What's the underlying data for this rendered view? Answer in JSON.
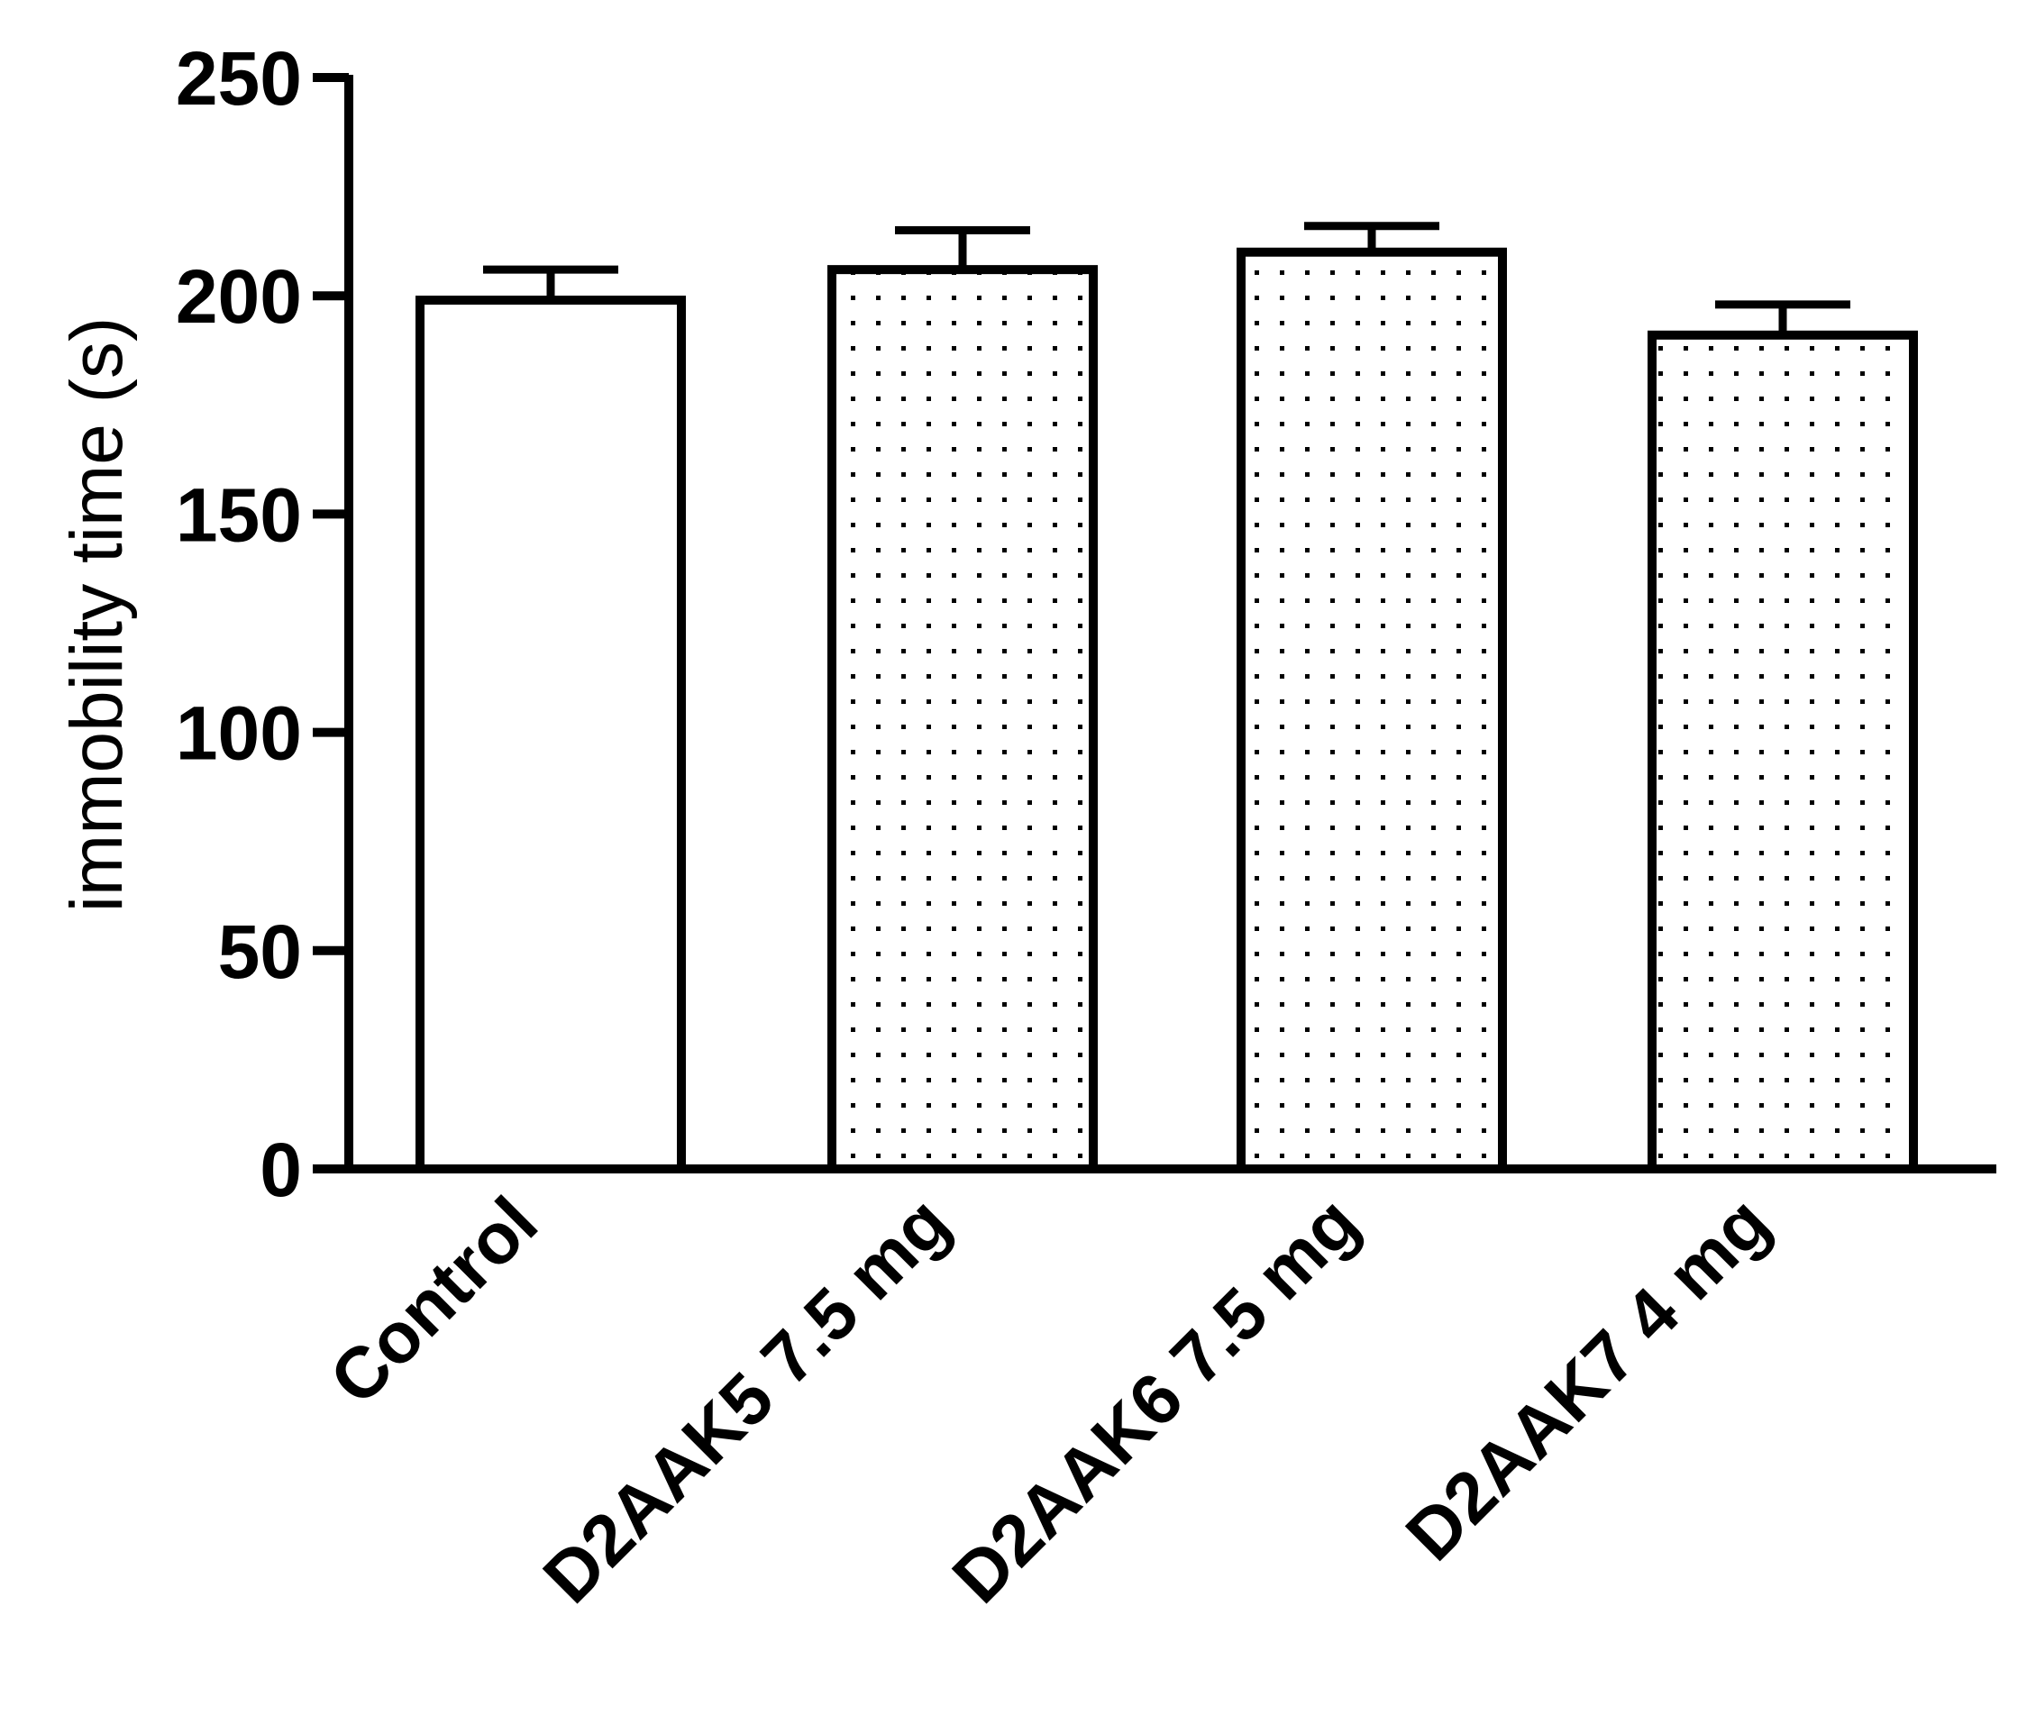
{
  "chart_data": {
    "type": "bar",
    "title": "",
    "xlabel": "",
    "ylabel": "immobility time (s)",
    "ylim": [
      0,
      250
    ],
    "yticks": [
      0,
      50,
      100,
      150,
      200,
      250
    ],
    "categories": [
      "Control",
      "D2AAK5 7.5 mg",
      "D2AAK6 7.5 mg",
      "D2AAK7 4 mg"
    ],
    "series": [
      {
        "values": [
          199,
          206,
          210,
          191
        ],
        "errors": [
          7,
          9,
          6,
          7
        ],
        "fills": [
          "open",
          "dotted",
          "dotted",
          "dotted"
        ]
      }
    ],
    "grid": false,
    "legend": "none",
    "colors": {
      "stroke": "#000000",
      "fill": "#ffffff",
      "dots": "#000000"
    }
  }
}
